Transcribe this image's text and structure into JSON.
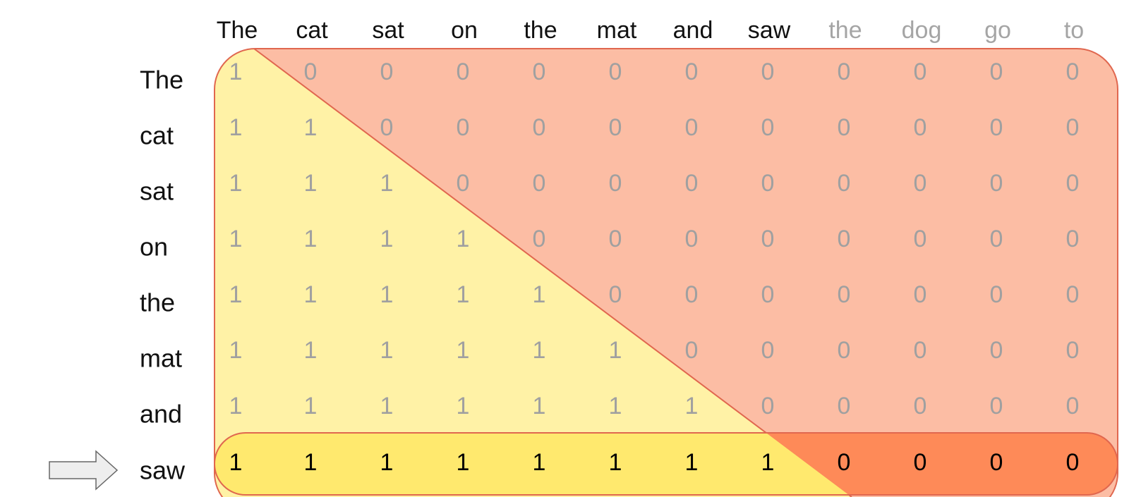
{
  "columns": [
    "The",
    "cat",
    "sat",
    "on",
    "the",
    "mat",
    "and",
    "saw",
    "the",
    "dog",
    "go",
    "to"
  ],
  "rows": [
    "The",
    "cat",
    "sat",
    "on",
    "the",
    "mat",
    "and",
    "saw"
  ],
  "visible_column_count": 8,
  "highlighted_row": 7,
  "mask": [
    [
      1,
      0,
      0,
      0,
      0,
      0,
      0,
      0,
      0,
      0,
      0,
      0
    ],
    [
      1,
      1,
      0,
      0,
      0,
      0,
      0,
      0,
      0,
      0,
      0,
      0
    ],
    [
      1,
      1,
      1,
      0,
      0,
      0,
      0,
      0,
      0,
      0,
      0,
      0
    ],
    [
      1,
      1,
      1,
      1,
      0,
      0,
      0,
      0,
      0,
      0,
      0,
      0
    ],
    [
      1,
      1,
      1,
      1,
      1,
      0,
      0,
      0,
      0,
      0,
      0,
      0
    ],
    [
      1,
      1,
      1,
      1,
      1,
      1,
      0,
      0,
      0,
      0,
      0,
      0
    ],
    [
      1,
      1,
      1,
      1,
      1,
      1,
      1,
      0,
      0,
      0,
      0,
      0
    ],
    [
      1,
      1,
      1,
      1,
      1,
      1,
      1,
      1,
      0,
      0,
      0,
      0
    ]
  ],
  "colors": {
    "visible_fill": "#fff2a6",
    "masked_fill": "#fcbda4",
    "highlight_visible_fill": "#ffe96e",
    "highlight_masked_fill": "#fe8a58",
    "border": "#e0674f",
    "token_dark": "#111111",
    "token_faded": "#a5a5a5",
    "value_faded": "#a0a0a0",
    "value_highlight": "#000000",
    "arrow_fill": "#eeeeee",
    "arrow_stroke": "#666666"
  },
  "icons": {
    "row_pointer": "right-arrow-icon"
  }
}
